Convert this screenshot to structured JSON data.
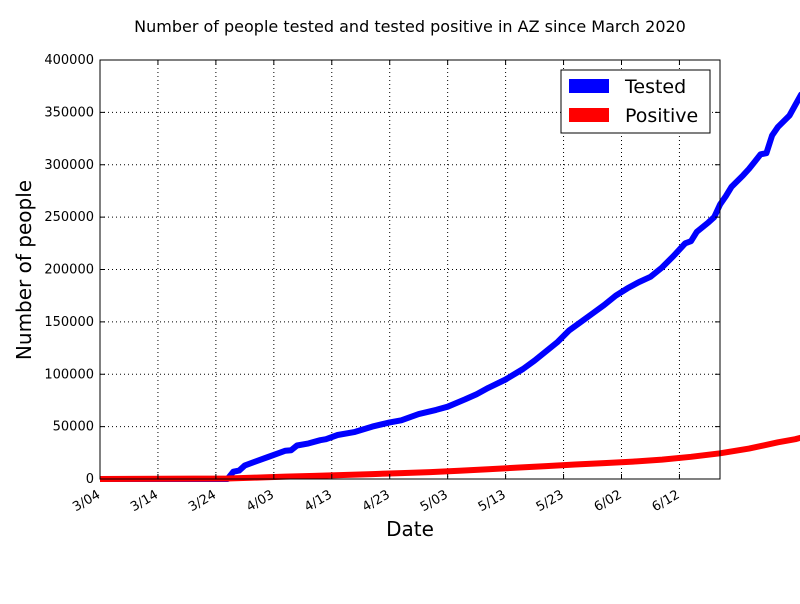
{
  "chart_data": {
    "type": "line",
    "title": "Number of people tested and tested positive in AZ since March 2020",
    "xlabel": "Date",
    "ylabel": "Number of people",
    "x_start": "2020-03-04",
    "x_ticks": [
      "3/04",
      "3/14",
      "3/24",
      "4/03",
      "4/13",
      "4/23",
      "5/03",
      "5/13",
      "5/23",
      "6/02",
      "6/12"
    ],
    "ylim": [
      0,
      400000
    ],
    "y_ticks": [
      0,
      50000,
      100000,
      150000,
      200000,
      250000,
      300000,
      350000,
      400000
    ],
    "grid": true,
    "legend_position": "top-right",
    "series": [
      {
        "name": "Tested",
        "color": "#0000ff",
        "points": [
          [
            "2020-03-04",
            0
          ],
          [
            "2020-03-26",
            0
          ],
          [
            "2020-03-27",
            7000
          ],
          [
            "2020-03-28",
            8000
          ],
          [
            "2020-03-29",
            13000
          ],
          [
            "2020-03-31",
            17000
          ],
          [
            "2020-04-02",
            21000
          ],
          [
            "2020-04-04",
            25000
          ],
          [
            "2020-04-05",
            27000
          ],
          [
            "2020-04-06",
            27500
          ],
          [
            "2020-04-07",
            32000
          ],
          [
            "2020-04-09",
            34000
          ],
          [
            "2020-04-11",
            37000
          ],
          [
            "2020-04-12",
            38000
          ],
          [
            "2020-04-14",
            42000
          ],
          [
            "2020-04-17",
            45000
          ],
          [
            "2020-04-20",
            50000
          ],
          [
            "2020-04-23",
            54000
          ],
          [
            "2020-04-25",
            56000
          ],
          [
            "2020-04-28",
            62000
          ],
          [
            "2020-05-01",
            66000
          ],
          [
            "2020-05-03",
            69000
          ],
          [
            "2020-05-06",
            76000
          ],
          [
            "2020-05-08",
            81000
          ],
          [
            "2020-05-10",
            87000
          ],
          [
            "2020-05-13",
            95000
          ],
          [
            "2020-05-16",
            105000
          ],
          [
            "2020-05-18",
            113000
          ],
          [
            "2020-05-20",
            122000
          ],
          [
            "2020-05-22",
            131000
          ],
          [
            "2020-05-24",
            142000
          ],
          [
            "2020-05-26",
            150000
          ],
          [
            "2020-05-28",
            158000
          ],
          [
            "2020-05-30",
            166000
          ],
          [
            "2020-06-01",
            175000
          ],
          [
            "2020-06-03",
            182000
          ],
          [
            "2020-06-05",
            188000
          ],
          [
            "2020-06-07",
            193000
          ],
          [
            "2020-06-09",
            202000
          ],
          [
            "2020-06-11",
            213000
          ],
          [
            "2020-06-13",
            225000
          ],
          [
            "2020-06-14",
            227000
          ],
          [
            "2020-06-15",
            236000
          ],
          [
            "2020-06-17",
            245000
          ],
          [
            "2020-06-18",
            250000
          ],
          [
            "2020-06-19",
            262000
          ],
          [
            "2020-06-20",
            270000
          ],
          [
            "2020-06-21",
            279000
          ],
          [
            "2020-06-23",
            290000
          ],
          [
            "2020-06-24",
            296000
          ],
          [
            "2020-06-25",
            303000
          ],
          [
            "2020-06-26",
            310000
          ],
          [
            "2020-06-27",
            311000
          ],
          [
            "2020-06-28",
            328000
          ],
          [
            "2020-06-29",
            336000
          ],
          [
            "2020-07-01",
            347000
          ],
          [
            "2020-07-02",
            357000
          ],
          [
            "2020-07-03",
            367000
          ],
          [
            "2020-07-04",
            365000
          ]
        ]
      },
      {
        "name": "Positive",
        "color": "#ff0000",
        "points": [
          [
            "2020-03-04",
            0
          ],
          [
            "2020-03-26",
            500
          ],
          [
            "2020-03-31",
            1300
          ],
          [
            "2020-04-05",
            2300
          ],
          [
            "2020-04-10",
            3000
          ],
          [
            "2020-04-15",
            3800
          ],
          [
            "2020-04-20",
            4700
          ],
          [
            "2020-04-25",
            5600
          ],
          [
            "2020-04-30",
            6600
          ],
          [
            "2020-05-05",
            7900
          ],
          [
            "2020-05-10",
            9300
          ],
          [
            "2020-05-15",
            10900
          ],
          [
            "2020-05-20",
            12300
          ],
          [
            "2020-05-25",
            13800
          ],
          [
            "2020-05-30",
            15200
          ],
          [
            "2020-06-04",
            16600
          ],
          [
            "2020-06-09",
            18500
          ],
          [
            "2020-06-14",
            21200
          ],
          [
            "2020-06-19",
            24500
          ],
          [
            "2020-06-24",
            29000
          ],
          [
            "2020-06-29",
            35000
          ],
          [
            "2020-07-02",
            38000
          ],
          [
            "2020-07-04",
            41000
          ]
        ]
      }
    ]
  }
}
